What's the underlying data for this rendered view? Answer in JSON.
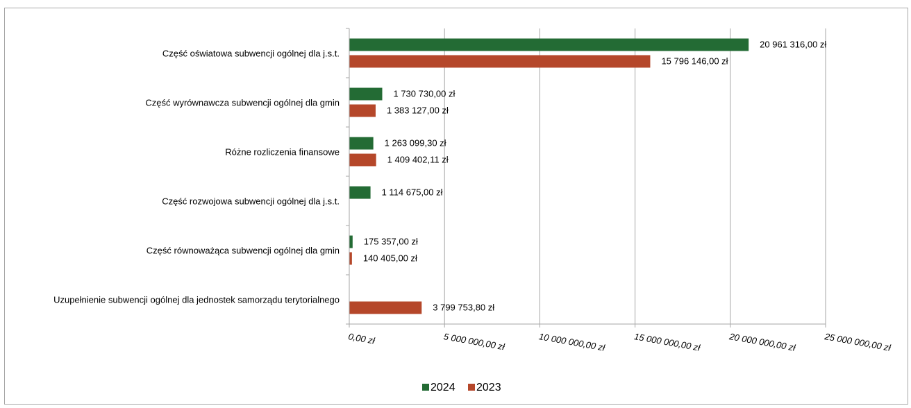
{
  "colors": {
    "series_2024": "#236b34",
    "series_2023": "#b5472a",
    "grid": "#a6a6a6",
    "axis": "#a6a6a6"
  },
  "chart_data": {
    "type": "bar",
    "orientation": "horizontal",
    "categories": [
      "Część oświatowa subwencji ogólnej dla j.s.t.",
      "Część wyrównawcza subwencji ogólnej dla gmin",
      "Różne rozliczenia finansowe",
      "Część rozwojowa subwencji ogólnej dla j.s.t.",
      "Część równoważąca subwencji ogólnej dla gmin",
      "Uzupełnienie subwencji ogólnej dla jednostek samorządu terytorialnego"
    ],
    "series": [
      {
        "name": "2024",
        "values": [
          20961316.0,
          1730730.0,
          1263099.3,
          1114675.0,
          175357.0,
          null
        ],
        "labels": [
          "20 961 316,00 zł",
          "1 730 730,00 zł",
          "1 263 099,30 zł",
          "1 114 675,00 zł",
          "175 357,00 zł",
          ""
        ]
      },
      {
        "name": "2023",
        "values": [
          15796146.0,
          1383127.0,
          1409402.11,
          null,
          140405.0,
          3799753.8
        ],
        "labels": [
          "15 796 146,00 zł",
          "1 383 127,00 zł",
          "1 409 402,11 zł",
          "",
          "140 405,00 zł",
          "3 799 753,80 zł"
        ]
      }
    ],
    "xlim": [
      0,
      25000000
    ],
    "xticks": [
      0,
      5000000,
      10000000,
      15000000,
      20000000,
      25000000
    ],
    "xtick_labels": [
      "0,00 zł",
      "5 000 000,00 zł",
      "10 000 000,00 zł",
      "15 000 000,00 zł",
      "20 000 000,00 zł",
      "25 000 000,00 zł"
    ],
    "grid": true,
    "legend_position": "bottom"
  }
}
